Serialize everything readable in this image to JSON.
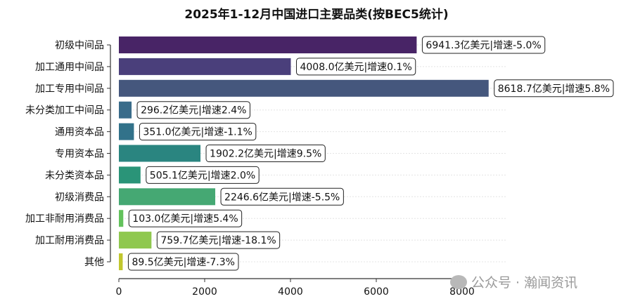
{
  "chart_data": {
    "type": "bar",
    "orientation": "horizontal",
    "title": "2025年1-12月中国进口主要品类(按BEC5统计)",
    "categories": [
      "初级中间品",
      "加工通用中间品",
      "加工专用中间品",
      "未分类加工中间品",
      "通用资本品",
      "专用资本品",
      "未分类资本品",
      "初级消费品",
      "加工非耐用消费品",
      "加工耐用消费品",
      "其他"
    ],
    "values": [
      6941.3,
      4008.0,
      8618.7,
      296.2,
      351.0,
      1902.2,
      505.1,
      2246.6,
      103.0,
      759.7,
      89.5
    ],
    "data_labels": [
      "6941.3亿美元|增速-5.0%",
      "4008.0亿美元|增速0.1%",
      "8618.7亿美元|增速5.8%",
      "296.2亿美元|增速2.4%",
      "351.0亿美元|增速-1.1%",
      "1902.2亿美元|增速9.5%",
      "505.1亿美元|增速2.0%",
      "2246.6亿美元|增速-5.5%",
      "103.0亿美元|增速5.4%",
      "759.7亿美元|增速-18.1%",
      "89.5亿美元|增速-7.3%"
    ],
    "colors": [
      "#482466",
      "#4a3f7b",
      "#45577d",
      "#3a6c8a",
      "#32728a",
      "#2a8580",
      "#2a9478",
      "#45a873",
      "#63c25c",
      "#8fc84f",
      "#c1c72e"
    ],
    "xticks": [
      0,
      2000,
      4000,
      6000,
      8000
    ],
    "xlim": [
      0,
      8000
    ],
    "xlabel": "",
    "ylabel": "",
    "grid": "horizontal-dotted",
    "legend": "none"
  },
  "watermark": "公众号 · 瀚闻资讯"
}
